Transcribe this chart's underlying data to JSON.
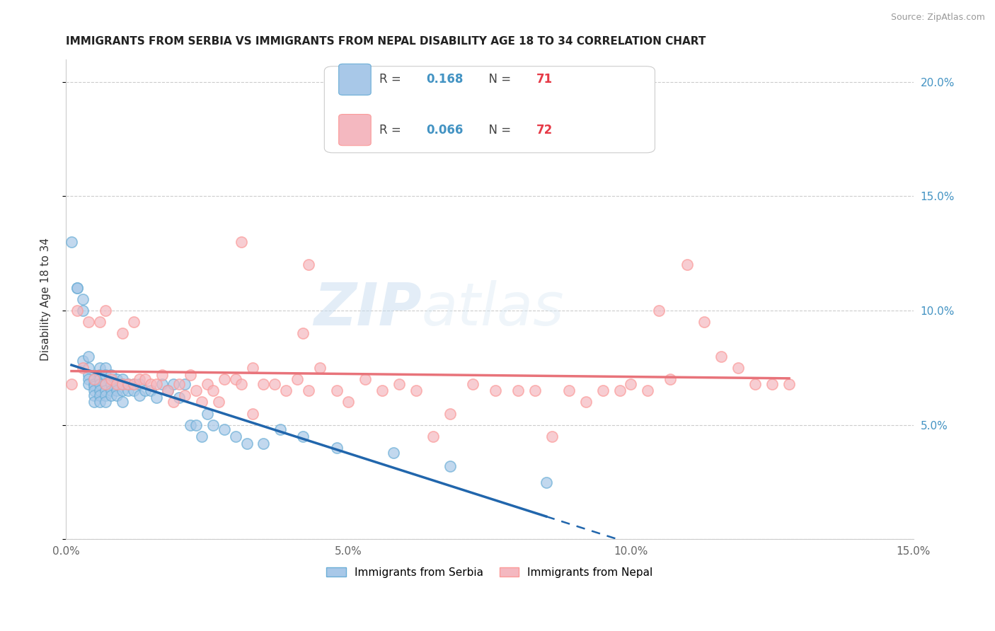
{
  "title": "IMMIGRANTS FROM SERBIA VS IMMIGRANTS FROM NEPAL DISABILITY AGE 18 TO 34 CORRELATION CHART",
  "source": "Source: ZipAtlas.com",
  "ylabel_label": "Disability Age 18 to 34",
  "xlim": [
    0.0,
    0.15
  ],
  "ylim": [
    0.0,
    0.21
  ],
  "xticks": [
    0.0,
    0.025,
    0.05,
    0.075,
    0.1,
    0.125,
    0.15
  ],
  "xtick_labels": [
    "0.0%",
    "",
    "5.0%",
    "",
    "10.0%",
    "",
    "15.0%"
  ],
  "yticks": [
    0.0,
    0.05,
    0.1,
    0.15,
    0.2
  ],
  "ytick_labels_right": [
    "",
    "5.0%",
    "10.0%",
    "15.0%",
    "20.0%"
  ],
  "serbia_color": "#a8c8e8",
  "nepal_color": "#f4b8c0",
  "serbia_edge_color": "#6baed6",
  "nepal_edge_color": "#fb9a99",
  "serbia_R": "0.168",
  "serbia_N": "71",
  "nepal_R": "0.066",
  "nepal_N": "72",
  "serbia_line_color": "#2166ac",
  "nepal_line_color": "#e8737a",
  "watermark_zip": "ZIP",
  "watermark_atlas": "atlas",
  "background_color": "#ffffff",
  "grid_color": "#cccccc",
  "serbia_points_x": [
    0.001,
    0.002,
    0.002,
    0.003,
    0.003,
    0.003,
    0.004,
    0.004,
    0.004,
    0.004,
    0.004,
    0.005,
    0.005,
    0.005,
    0.005,
    0.005,
    0.005,
    0.006,
    0.006,
    0.006,
    0.006,
    0.006,
    0.006,
    0.006,
    0.007,
    0.007,
    0.007,
    0.007,
    0.007,
    0.007,
    0.008,
    0.008,
    0.008,
    0.008,
    0.009,
    0.009,
    0.009,
    0.009,
    0.01,
    0.01,
    0.01,
    0.01,
    0.011,
    0.011,
    0.012,
    0.012,
    0.013,
    0.013,
    0.014,
    0.015,
    0.016,
    0.017,
    0.018,
    0.019,
    0.02,
    0.021,
    0.022,
    0.023,
    0.024,
    0.025,
    0.026,
    0.028,
    0.03,
    0.032,
    0.035,
    0.038,
    0.042,
    0.048,
    0.058,
    0.068,
    0.085
  ],
  "serbia_points_y": [
    0.13,
    0.11,
    0.11,
    0.105,
    0.1,
    0.078,
    0.08,
    0.075,
    0.072,
    0.07,
    0.068,
    0.07,
    0.068,
    0.067,
    0.065,
    0.063,
    0.06,
    0.075,
    0.072,
    0.07,
    0.068,
    0.065,
    0.063,
    0.06,
    0.075,
    0.072,
    0.068,
    0.065,
    0.063,
    0.06,
    0.072,
    0.068,
    0.065,
    0.063,
    0.07,
    0.068,
    0.065,
    0.063,
    0.07,
    0.068,
    0.065,
    0.06,
    0.068,
    0.065,
    0.068,
    0.065,
    0.068,
    0.063,
    0.065,
    0.065,
    0.062,
    0.068,
    0.065,
    0.068,
    0.062,
    0.068,
    0.05,
    0.05,
    0.045,
    0.055,
    0.05,
    0.048,
    0.045,
    0.042,
    0.042,
    0.048,
    0.045,
    0.04,
    0.038,
    0.032,
    0.025
  ],
  "nepal_points_x": [
    0.001,
    0.002,
    0.003,
    0.004,
    0.005,
    0.006,
    0.007,
    0.007,
    0.008,
    0.009,
    0.01,
    0.01,
    0.011,
    0.012,
    0.012,
    0.013,
    0.014,
    0.015,
    0.016,
    0.017,
    0.018,
    0.019,
    0.02,
    0.021,
    0.022,
    0.023,
    0.024,
    0.025,
    0.026,
    0.027,
    0.028,
    0.03,
    0.031,
    0.033,
    0.035,
    0.037,
    0.039,
    0.041,
    0.043,
    0.045,
    0.048,
    0.05,
    0.053,
    0.056,
    0.059,
    0.062,
    0.065,
    0.068,
    0.072,
    0.076,
    0.08,
    0.083,
    0.086,
    0.089,
    0.092,
    0.095,
    0.098,
    0.1,
    0.103,
    0.107,
    0.11,
    0.113,
    0.116,
    0.119,
    0.122,
    0.125,
    0.128,
    0.031,
    0.043,
    0.033,
    0.042,
    0.105
  ],
  "nepal_points_y": [
    0.068,
    0.1,
    0.075,
    0.095,
    0.07,
    0.095,
    0.068,
    0.1,
    0.07,
    0.068,
    0.09,
    0.068,
    0.068,
    0.068,
    0.095,
    0.07,
    0.07,
    0.068,
    0.068,
    0.072,
    0.065,
    0.06,
    0.068,
    0.063,
    0.072,
    0.065,
    0.06,
    0.068,
    0.065,
    0.06,
    0.07,
    0.07,
    0.068,
    0.075,
    0.068,
    0.068,
    0.065,
    0.07,
    0.065,
    0.075,
    0.065,
    0.06,
    0.07,
    0.065,
    0.068,
    0.065,
    0.045,
    0.055,
    0.068,
    0.065,
    0.065,
    0.065,
    0.045,
    0.065,
    0.06,
    0.065,
    0.065,
    0.068,
    0.065,
    0.07,
    0.12,
    0.095,
    0.08,
    0.075,
    0.068,
    0.068,
    0.068,
    0.13,
    0.12,
    0.055,
    0.09,
    0.1
  ]
}
